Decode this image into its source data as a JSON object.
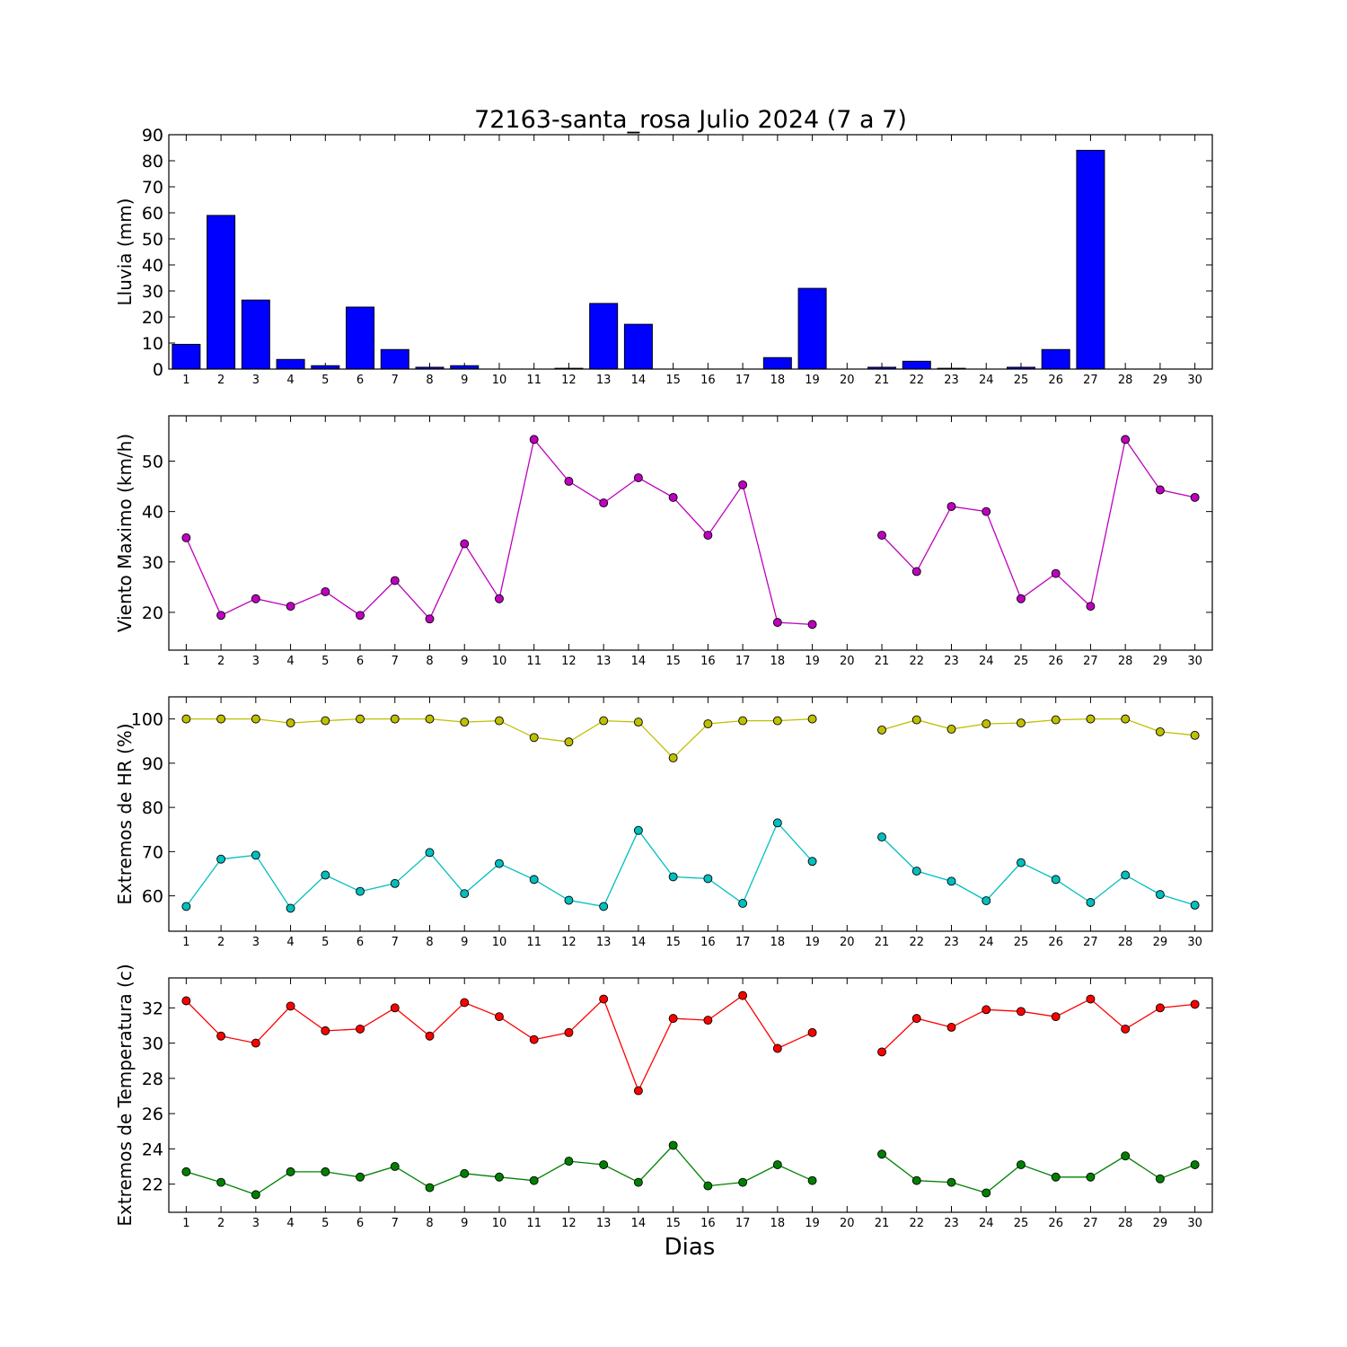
{
  "title": "72163-santa_rosa Julio 2024  (7 a 7)",
  "xlabel": "Dias",
  "chart_data": [
    {
      "type": "bar",
      "ylabel": "Lluvia (mm)",
      "ylim": [
        0,
        90
      ],
      "yticks": [
        0,
        10,
        20,
        30,
        40,
        50,
        60,
        70,
        80,
        90
      ],
      "x": [
        1,
        2,
        3,
        4,
        5,
        6,
        7,
        8,
        9,
        10,
        11,
        12,
        13,
        14,
        15,
        16,
        17,
        18,
        19,
        20,
        21,
        22,
        23,
        24,
        25,
        26,
        27,
        28,
        29,
        30
      ],
      "series": [
        {
          "color": "#0000ff",
          "values": [
            9.5,
            59,
            26.5,
            3.7,
            1.3,
            23.8,
            7.5,
            0.7,
            1.3,
            0,
            0,
            0.3,
            25.2,
            17.2,
            0,
            0,
            0,
            4.4,
            31,
            0,
            0.7,
            3,
            0.3,
            0,
            0.7,
            7.5,
            84,
            0,
            0,
            0
          ]
        }
      ]
    },
    {
      "type": "line",
      "ylabel": "Viento Maximo (km/h)",
      "ylim": [
        12.5,
        59
      ],
      "yticks": [
        20,
        30,
        40,
        50
      ],
      "x": [
        1,
        2,
        3,
        4,
        5,
        6,
        7,
        8,
        9,
        10,
        11,
        12,
        13,
        14,
        15,
        16,
        17,
        18,
        19,
        20,
        21,
        22,
        23,
        24,
        25,
        26,
        27,
        28,
        29,
        30
      ],
      "series": [
        {
          "color": "#bf00bf",
          "values": [
            34.8,
            19.4,
            22.7,
            21.2,
            24.1,
            19.4,
            26.3,
            18.7,
            33.6,
            22.7,
            54.3,
            46,
            41.7,
            46.7,
            42.8,
            35.3,
            45.3,
            18,
            17.6,
            null,
            35.3,
            28.1,
            41,
            40,
            22.7,
            27.7,
            21.2,
            54.3,
            44.3,
            42.8
          ]
        }
      ]
    },
    {
      "type": "line",
      "ylabel": "Extremos de HR (%)",
      "ylim": [
        52,
        105
      ],
      "yticks": [
        60,
        70,
        80,
        90,
        100
      ],
      "x": [
        1,
        2,
        3,
        4,
        5,
        6,
        7,
        8,
        9,
        10,
        11,
        12,
        13,
        14,
        15,
        16,
        17,
        18,
        19,
        20,
        21,
        22,
        23,
        24,
        25,
        26,
        27,
        28,
        29,
        30
      ],
      "series": [
        {
          "color": "#bfbf00",
          "values": [
            100,
            100,
            100,
            99.1,
            99.6,
            100,
            100,
            100,
            99.3,
            99.6,
            95.8,
            94.8,
            99.6,
            99.3,
            91.2,
            98.9,
            99.6,
            99.6,
            100,
            null,
            97.5,
            99.8,
            97.7,
            98.9,
            99.1,
            99.8,
            100,
            100,
            97.1,
            96.3
          ]
        },
        {
          "color": "#00bfbf",
          "values": [
            57.6,
            68.3,
            69.2,
            57.2,
            64.7,
            61,
            62.8,
            69.8,
            60.5,
            67.3,
            63.7,
            59,
            57.6,
            74.8,
            64.3,
            63.9,
            58.3,
            76.5,
            67.8,
            null,
            73.3,
            65.6,
            63.3,
            58.9,
            67.5,
            63.7,
            58.5,
            64.7,
            60.3,
            57.9
          ]
        }
      ]
    },
    {
      "type": "line",
      "ylabel": "Extremos de Temperatura (c)",
      "ylim": [
        20.4,
        33.7
      ],
      "yticks": [
        22,
        24,
        26,
        28,
        30,
        32
      ],
      "x": [
        1,
        2,
        3,
        4,
        5,
        6,
        7,
        8,
        9,
        10,
        11,
        12,
        13,
        14,
        15,
        16,
        17,
        18,
        19,
        20,
        21,
        22,
        23,
        24,
        25,
        26,
        27,
        28,
        29,
        30
      ],
      "series": [
        {
          "color": "#ff0000",
          "values": [
            32.4,
            30.4,
            30,
            32.1,
            30.7,
            30.8,
            32,
            30.4,
            32.3,
            31.5,
            30.2,
            30.6,
            32.5,
            27.3,
            31.4,
            31.3,
            32.7,
            29.7,
            30.6,
            null,
            29.5,
            31.4,
            30.9,
            31.9,
            31.8,
            31.5,
            32.5,
            30.8,
            32,
            32.2
          ]
        },
        {
          "color": "#008000",
          "values": [
            22.7,
            22.1,
            21.4,
            22.7,
            22.7,
            22.4,
            23,
            21.8,
            22.6,
            22.4,
            22.2,
            23.3,
            23.1,
            22.1,
            24.2,
            21.9,
            22.1,
            23.1,
            22.2,
            null,
            23.7,
            22.2,
            22.1,
            21.5,
            23.1,
            22.4,
            22.4,
            23.6,
            22.3,
            23.1
          ]
        }
      ]
    }
  ]
}
